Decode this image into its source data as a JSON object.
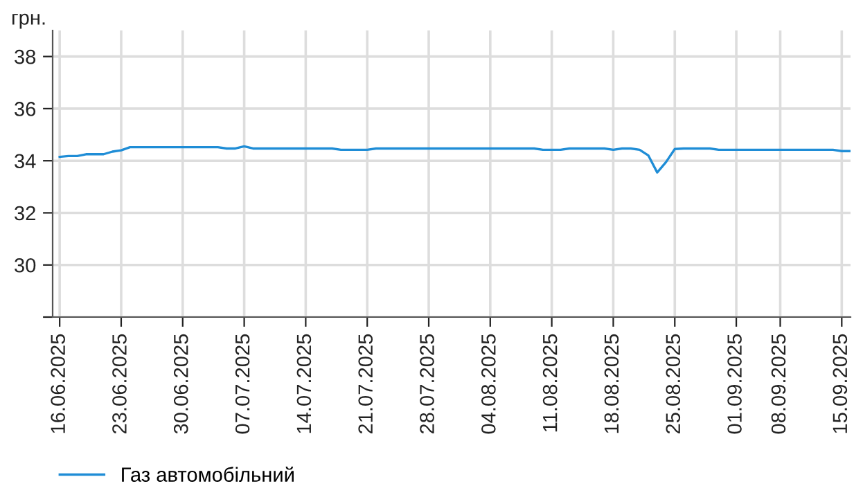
{
  "chart_data": {
    "type": "line",
    "ylabel": "грн.",
    "categories": [
      "16.06.2025",
      null,
      null,
      null,
      null,
      null,
      null,
      "23.06.2025",
      null,
      null,
      null,
      null,
      null,
      null,
      "30.06.2025",
      null,
      null,
      null,
      null,
      null,
      null,
      "07.07.2025",
      null,
      null,
      null,
      null,
      null,
      null,
      "14.07.2025",
      null,
      null,
      null,
      null,
      null,
      null,
      "21.07.2025",
      null,
      null,
      null,
      null,
      null,
      null,
      "28.07.2025",
      null,
      null,
      null,
      null,
      null,
      null,
      "04.08.2025",
      null,
      null,
      null,
      null,
      null,
      null,
      "11.08.2025",
      null,
      null,
      null,
      null,
      null,
      null,
      "18.08.2025",
      null,
      null,
      null,
      null,
      null,
      null,
      "25.08.2025",
      null,
      null,
      null,
      null,
      null,
      null,
      "01.09.2025",
      null,
      null,
      null,
      null,
      "08.09.2025",
      null,
      null,
      null,
      null,
      null,
      null,
      "15.09.2025",
      null
    ],
    "series": [
      {
        "name": "Газ автомобільний",
        "color": "#1f8dd6",
        "values": [
          34.15,
          34.18,
          34.18,
          34.25,
          34.25,
          34.25,
          34.35,
          34.4,
          34.52,
          34.52,
          34.52,
          34.52,
          34.52,
          34.52,
          34.52,
          34.52,
          34.52,
          34.52,
          34.52,
          34.47,
          34.47,
          34.55,
          34.47,
          34.47,
          34.47,
          34.47,
          34.47,
          34.47,
          34.47,
          34.47,
          34.47,
          34.47,
          34.42,
          34.42,
          34.42,
          34.42,
          34.47,
          34.47,
          34.47,
          34.47,
          34.47,
          34.47,
          34.47,
          34.47,
          34.47,
          34.47,
          34.47,
          34.47,
          34.47,
          34.47,
          34.47,
          34.47,
          34.47,
          34.47,
          34.47,
          34.42,
          34.42,
          34.42,
          34.47,
          34.47,
          34.47,
          34.47,
          34.47,
          34.42,
          34.47,
          34.47,
          34.42,
          34.2,
          33.55,
          33.95,
          34.45,
          34.47,
          34.47,
          34.47,
          34.47,
          34.42,
          34.42,
          34.42,
          34.42,
          34.42,
          34.42,
          34.42,
          34.42,
          34.42,
          34.42,
          34.42,
          34.42,
          34.42,
          34.42,
          34.37,
          34.37
        ]
      }
    ],
    "ylim": [
      28,
      39
    ],
    "yticks": [
      {
        "value": 28,
        "label": null
      },
      30,
      32,
      34,
      36,
      38
    ],
    "grid": true,
    "legend": "bottom left",
    "marker": "none",
    "line_style": "solid"
  }
}
